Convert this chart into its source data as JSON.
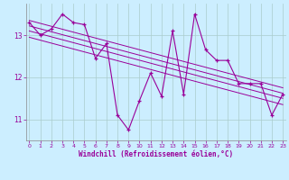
{
  "xlabel": "Windchill (Refroidissement éolien,°C)",
  "background_color": "#cceeff",
  "grid_color": "#aacccc",
  "line_color": "#990099",
  "x_data": [
    0,
    1,
    2,
    3,
    4,
    5,
    6,
    7,
    8,
    9,
    10,
    11,
    12,
    13,
    14,
    15,
    16,
    17,
    18,
    19,
    20,
    21,
    22,
    23
  ],
  "y_main": [
    13.3,
    13.0,
    13.15,
    13.5,
    13.3,
    13.25,
    12.45,
    12.8,
    11.1,
    10.75,
    11.45,
    12.1,
    11.55,
    13.1,
    11.6,
    13.5,
    12.65,
    12.4,
    12.4,
    11.85,
    11.85,
    11.85,
    11.1,
    11.6
  ],
  "trend_lines": [
    {
      "x0": 0,
      "y0": 13.35,
      "x1": 23,
      "y1": 11.75
    },
    {
      "x0": 0,
      "y0": 13.22,
      "x1": 23,
      "y1": 11.62
    },
    {
      "x0": 0,
      "y0": 13.1,
      "x1": 23,
      "y1": 11.5
    },
    {
      "x0": 0,
      "y0": 12.95,
      "x1": 23,
      "y1": 11.35
    }
  ],
  "ylim": [
    10.5,
    13.75
  ],
  "xlim": [
    -0.3,
    23.3
  ],
  "yticks": [
    11,
    12,
    13
  ],
  "xticks": [
    0,
    1,
    2,
    3,
    4,
    5,
    6,
    7,
    8,
    9,
    10,
    11,
    12,
    13,
    14,
    15,
    16,
    17,
    18,
    19,
    20,
    21,
    22,
    23
  ]
}
